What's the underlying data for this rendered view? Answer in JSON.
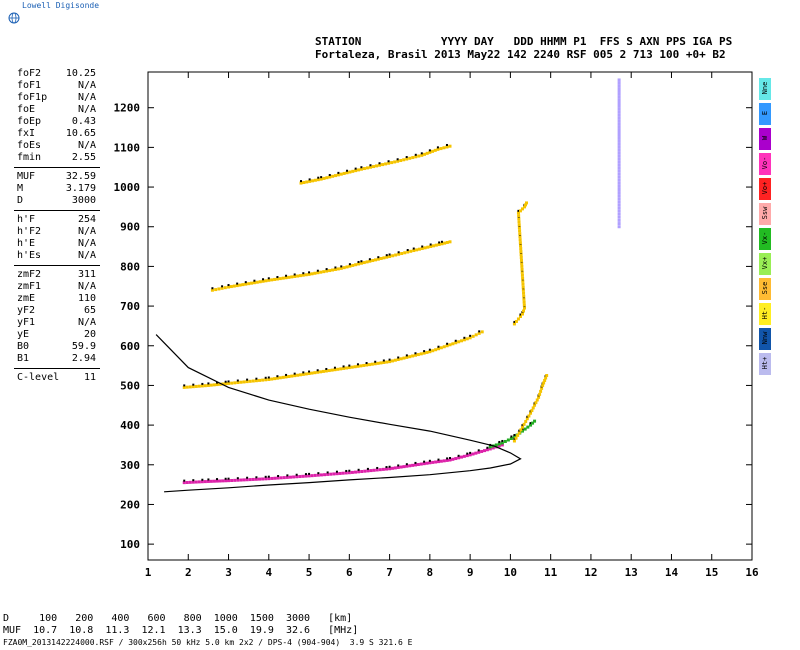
{
  "brand": "Lowell Digisonde",
  "header": {
    "line1": "STATION            YYYY DAY   DDD HHMM P1  FFS S AXN PPS IGA PS",
    "line2": "Fortaleza, Brasil 2013 May22 142 2240 RSF 005 2 713 100 +0+ B2"
  },
  "params": {
    "group1": [
      {
        "label": "foF2",
        "value": "10.25"
      },
      {
        "label": "foF1",
        "value": "N/A"
      },
      {
        "label": "foF1p",
        "value": "N/A"
      },
      {
        "label": "foE",
        "value": "N/A"
      },
      {
        "label": "foEp",
        "value": "0.43"
      },
      {
        "label": "fxI",
        "value": "10.65"
      },
      {
        "label": "foEs",
        "value": "N/A"
      },
      {
        "label": "fmin",
        "value": "2.55"
      }
    ],
    "group2": [
      {
        "label": "MUF",
        "value": "32.59"
      },
      {
        "label": "M",
        "value": "3.179"
      },
      {
        "label": "D",
        "value": "3000"
      }
    ],
    "group3": [
      {
        "label": "h'F",
        "value": "254"
      },
      {
        "label": "h'F2",
        "value": "N/A"
      },
      {
        "label": "h'E",
        "value": "N/A"
      },
      {
        "label": "h'Es",
        "value": "N/A"
      }
    ],
    "group4": [
      {
        "label": "zmF2",
        "value": "311"
      },
      {
        "label": "zmF1",
        "value": "N/A"
      },
      {
        "label": "zmE",
        "value": "110"
      },
      {
        "label": "yF2",
        "value": "65"
      },
      {
        "label": "yF1",
        "value": "N/A"
      },
      {
        "label": "yE",
        "value": "20"
      },
      {
        "label": "B0",
        "value": "59.9"
      },
      {
        "label": "B1",
        "value": "2.94"
      }
    ],
    "group5": [
      {
        "label": "C-level",
        "value": "11"
      }
    ]
  },
  "legend": [
    {
      "label": "Nne",
      "color": "#66e8e8"
    },
    {
      "label": "E",
      "color": "#3399ff"
    },
    {
      "label": "W",
      "color": "#aa00cc"
    },
    {
      "label": "Vo-",
      "color": "#ff33bb"
    },
    {
      "label": "Vo+",
      "color": "#ff2222"
    },
    {
      "label": "Ssw",
      "color": "#ffaaaa"
    },
    {
      "label": "Vx-",
      "color": "#22bb22"
    },
    {
      "label": "Vx+",
      "color": "#99ee55"
    },
    {
      "label": "Sse",
      "color": "#ffbb33"
    },
    {
      "label": "Ht-",
      "color": "#ffee22"
    },
    {
      "label": "Nnw",
      "color": "#1155aa"
    },
    {
      "label": "Ht+",
      "color": "#bbbbee"
    }
  ],
  "footer": {
    "line1": "D     100   200   400   600   800  1000  1500  3000   [km]",
    "line2": "MUF  10.7  10.8  11.3  12.1  13.3  15.0  19.9  32.6   [MHz]",
    "line3": "FZA0M_2013142224000.RSF / 300x256h 50 kHz 5.0 km 2x2 / DPS-4 (904-904)  3.9 S 321.6 E"
  },
  "chart_data": {
    "type": "scatter",
    "x_ticks": [
      1,
      2,
      3,
      4,
      5,
      6,
      7,
      8,
      9,
      10,
      11,
      12,
      13,
      14,
      15,
      16
    ],
    "y_ticks": [
      100,
      200,
      300,
      400,
      500,
      600,
      700,
      800,
      900,
      1000,
      1100,
      1200
    ],
    "xlim": [
      1,
      16
    ],
    "ylim": [
      60,
      1290
    ],
    "grid": false,
    "legend_position": "right",
    "series": [
      {
        "kind": "trace",
        "color": "#dd22aa",
        "points": [
          [
            1.9,
            255
          ],
          [
            2.5,
            258
          ],
          [
            3,
            260
          ],
          [
            4,
            265
          ],
          [
            5,
            272
          ],
          [
            6,
            280
          ],
          [
            7,
            290
          ],
          [
            8,
            305
          ],
          [
            8.5,
            312
          ],
          [
            9,
            325
          ],
          [
            9.5,
            340
          ],
          [
            9.8,
            350
          ]
        ]
      },
      {
        "kind": "trace",
        "color": "#22aa22",
        "points": [
          [
            9.5,
            345
          ],
          [
            9.8,
            355
          ],
          [
            10.1,
            370
          ],
          [
            10.3,
            385
          ],
          [
            10.5,
            400
          ],
          [
            10.6,
            410
          ]
        ]
      },
      {
        "kind": "trace",
        "color": "#f5c400",
        "points": [
          [
            1.9,
            495
          ],
          [
            2.5,
            500
          ],
          [
            3,
            505
          ],
          [
            4,
            515
          ],
          [
            5,
            530
          ],
          [
            6,
            545
          ],
          [
            7,
            560
          ],
          [
            8,
            585
          ],
          [
            9,
            620
          ],
          [
            9.3,
            635
          ]
        ]
      },
      {
        "kind": "trace",
        "color": "#f5c400",
        "points": [
          [
            2.6,
            740
          ],
          [
            3,
            748
          ],
          [
            4,
            765
          ],
          [
            5,
            780
          ],
          [
            5.8,
            795
          ],
          [
            6.3,
            808
          ],
          [
            7,
            825
          ],
          [
            7.6,
            840
          ],
          [
            8.3,
            857
          ],
          [
            8.5,
            862
          ]
        ]
      },
      {
        "kind": "trace",
        "color": "#f5c400",
        "points": [
          [
            4.8,
            1010
          ],
          [
            5.3,
            1020
          ],
          [
            6.3,
            1045
          ],
          [
            7.2,
            1065
          ],
          [
            7.8,
            1080
          ],
          [
            8.2,
            1095
          ],
          [
            8.5,
            1103
          ]
        ]
      },
      {
        "kind": "trace",
        "color": "#f5c400",
        "points": [
          [
            10.1,
            360
          ],
          [
            10.3,
            395
          ],
          [
            10.5,
            430
          ],
          [
            10.7,
            470
          ],
          [
            10.8,
            500
          ],
          [
            10.9,
            525
          ]
        ]
      },
      {
        "kind": "trace",
        "color": "#f5c400",
        "points": [
          [
            10.1,
            655
          ],
          [
            10.3,
            680
          ],
          [
            10.35,
            695
          ],
          [
            10.2,
            935
          ],
          [
            10.35,
            950
          ],
          [
            10.4,
            960
          ]
        ]
      },
      {
        "kind": "trace",
        "color": "#b0a0ff",
        "points": [
          [
            12.7,
            900
          ],
          [
            12.7,
            940
          ],
          [
            12.7,
            1040
          ],
          [
            12.7,
            1100
          ],
          [
            12.7,
            1190
          ],
          [
            12.7,
            1270
          ]
        ]
      }
    ],
    "profile_curve": [
      [
        1.2,
        628
      ],
      [
        2,
        545
      ],
      [
        3,
        495
      ],
      [
        4,
        463
      ],
      [
        5,
        440
      ],
      [
        6,
        420
      ],
      [
        7,
        402
      ],
      [
        8,
        385
      ],
      [
        9,
        362
      ],
      [
        9.6,
        347
      ],
      [
        10.0,
        330
      ],
      [
        10.25,
        315
      ],
      [
        10.0,
        302
      ],
      [
        9.5,
        292
      ],
      [
        9,
        285
      ],
      [
        8,
        275
      ],
      [
        7,
        268
      ],
      [
        6,
        262
      ],
      [
        5,
        255
      ],
      [
        4,
        249
      ],
      [
        3,
        242
      ],
      [
        2,
        236
      ],
      [
        1.4,
        232
      ]
    ]
  }
}
